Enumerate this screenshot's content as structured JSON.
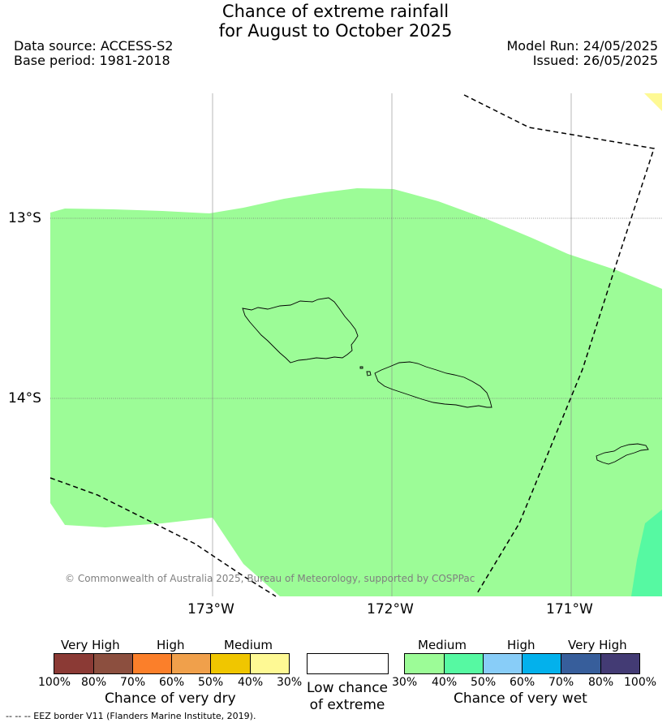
{
  "header": {
    "title_line1": "Chance of extreme rainfall",
    "title_line2": "for August to October 2025",
    "data_source": "Data source: ACCESS-S2",
    "base_period": "Base period: 1981-2018",
    "model_run": "Model Run: 24/05/2025",
    "issued": "Issued: 26/05/2025"
  },
  "map": {
    "lat_labels": [
      "13°S",
      "14°S"
    ],
    "lon_labels": [
      "173°W",
      "172°W",
      "171°W"
    ],
    "copyright": "© Commonwealth of Australia 2025, Bureau of Meteorology, supported by COSPPac",
    "colors": {
      "medium_wet": "#9cfc97",
      "high_40_wet": "#56f9a2",
      "medium_dry": "#fef994"
    }
  },
  "legend_dry": {
    "categories": [
      "Very High",
      "High",
      "Medium"
    ],
    "ticks": [
      "100%",
      "80%",
      "70%",
      "60%",
      "50%",
      "40%",
      "30%"
    ],
    "colors": [
      "#8b3a35",
      "#8c4f3f",
      "#fb7f2a",
      "#f0a04b",
      "#f0c600",
      "#fef994"
    ],
    "title": "Chance of very dry"
  },
  "legend_low": {
    "line1": "Low chance",
    "line2": "of extreme"
  },
  "legend_wet": {
    "categories": [
      "Medium",
      "High",
      "Very High"
    ],
    "ticks": [
      "30%",
      "40%",
      "50%",
      "60%",
      "70%",
      "80%",
      "100%"
    ],
    "colors": [
      "#9cfc97",
      "#56f9a2",
      "#88cdf8",
      "#03b1ec",
      "#375e9b",
      "#433b74"
    ],
    "title": "Chance of very wet"
  },
  "footnote": "--  --  -- EEZ border V11 (Flanders Marine Institute, 2019)."
}
